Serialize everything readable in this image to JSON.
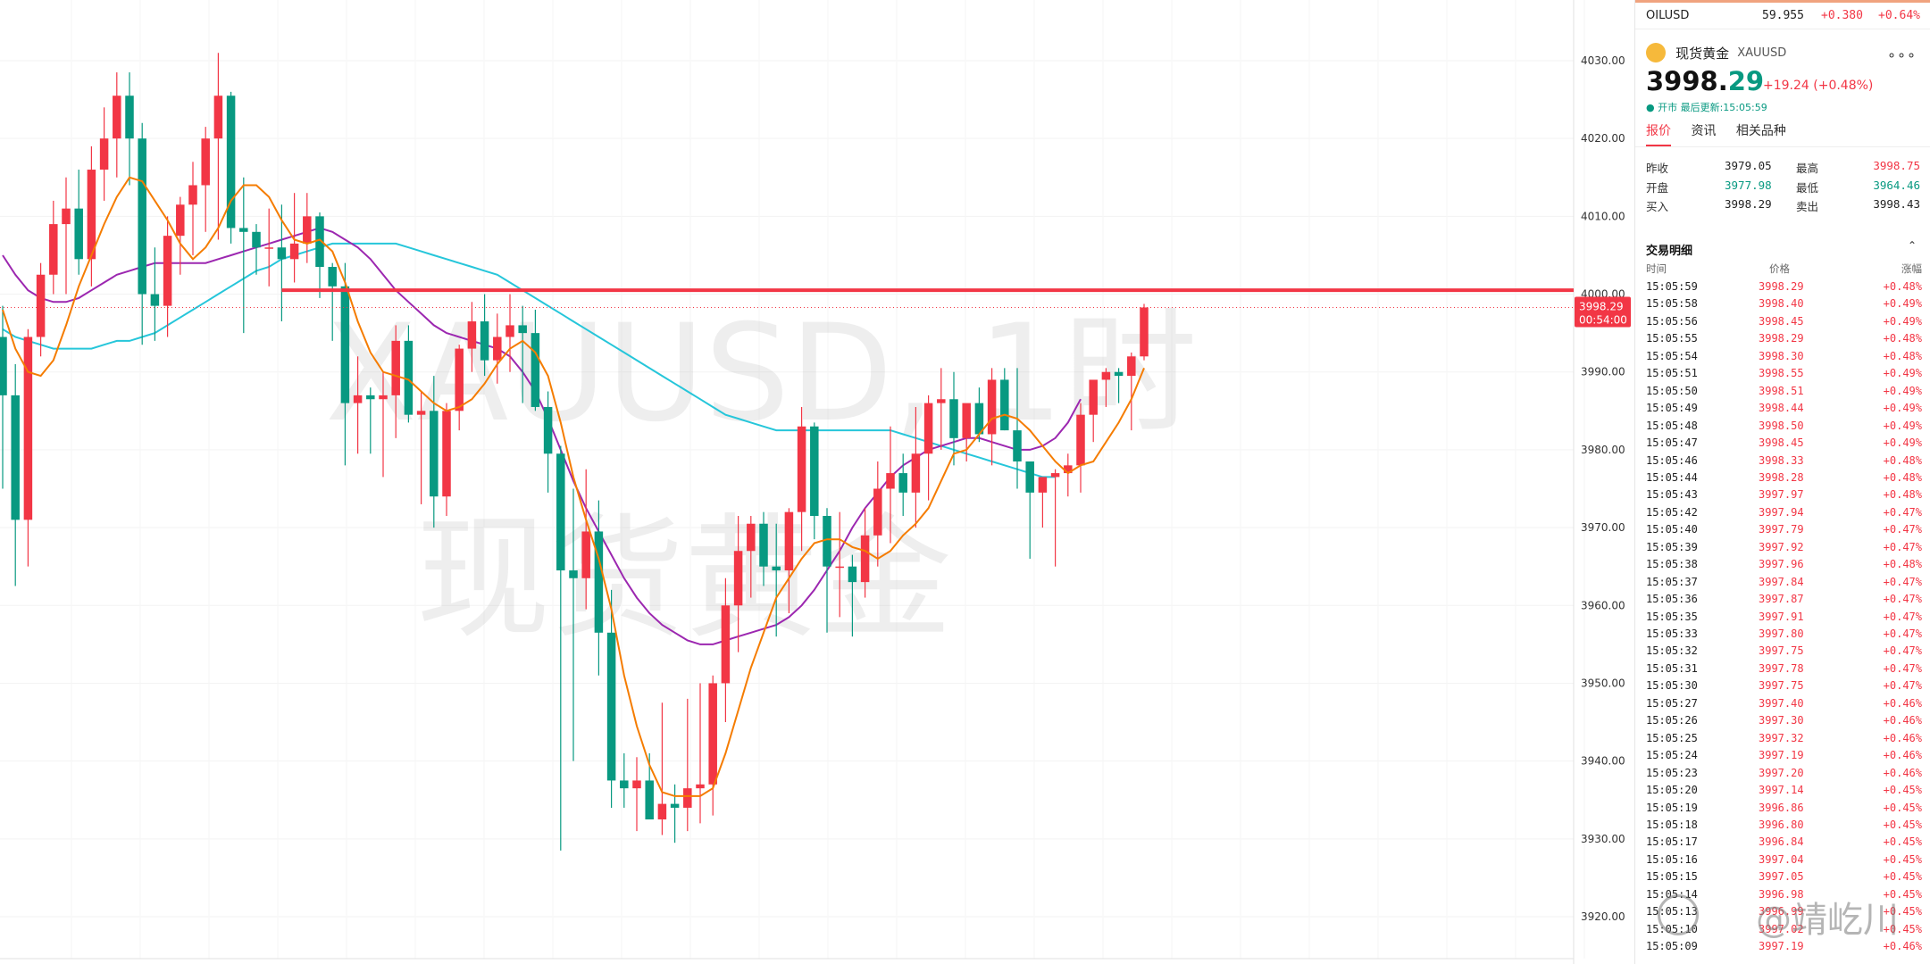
{
  "chart_data": {
    "type": "candlestick",
    "symbol": "XAUUSD",
    "timeframe_label": "XAUUSD, 1时",
    "watermark_cn": "现货黄金",
    "ylim": [
      3916,
      4036
    ],
    "y_ticks": [
      4030,
      4020,
      4010,
      4000,
      3990,
      3980,
      3970,
      3960,
      3950,
      3940,
      3930,
      3920
    ],
    "y_tick_labels": [
      "4030.00",
      "4020.00",
      "4010.00",
      "4000.00",
      "3990.00",
      "3980.00",
      "3970.00",
      "3960.00",
      "3950.00",
      "3940.00",
      "3930.00",
      "3920.00"
    ],
    "last_price_label": "3998.29",
    "countdown_label": "00:54:00",
    "last_price": 3998.29,
    "horizontal_line": 4000.5,
    "horizontal_line_start_bar": 22,
    "colors": {
      "up": "#f23645",
      "down": "#089981",
      "ma_fast": "#f57c00",
      "ma_mid": "#9c27b0",
      "ma_slow": "#26c6da",
      "hline": "#f23645"
    },
    "candles": [
      [
        3994.5,
        3998.5,
        3975.0,
        3987.0
      ],
      [
        3987.0,
        3991.0,
        3962.5,
        3971.0
      ],
      [
        3971.0,
        3995.5,
        3965.0,
        3994.5
      ],
      [
        3994.5,
        4004.0,
        3992.0,
        4002.5
      ],
      [
        4002.5,
        4012.0,
        4000.0,
        4009.0
      ],
      [
        4009.0,
        4015.0,
        4000.0,
        4011.0
      ],
      [
        4011.0,
        4016.0,
        4002.5,
        4004.5
      ],
      [
        4004.5,
        4019.0,
        4001.0,
        4016.0
      ],
      [
        4016.0,
        4024.0,
        4012.0,
        4020.0
      ],
      [
        4020.0,
        4028.5,
        4015.0,
        4025.5
      ],
      [
        4025.5,
        4028.5,
        4014.0,
        4020.0
      ],
      [
        4020.0,
        4022.0,
        3993.5,
        4000.0
      ],
      [
        4000.0,
        4006.0,
        3994.0,
        3998.5
      ],
      [
        3998.5,
        4010.0,
        3994.5,
        4007.5
      ],
      [
        4007.5,
        4012.5,
        4002.5,
        4011.5
      ],
      [
        4011.5,
        4017.0,
        4005.0,
        4014.0
      ],
      [
        4014.0,
        4021.5,
        4008.0,
        4020.0
      ],
      [
        4020.0,
        4031.0,
        4007.0,
        4025.5
      ],
      [
        4025.5,
        4026.0,
        4006.5,
        4008.5
      ],
      [
        4008.5,
        4015.0,
        3995.0,
        4008.0
      ],
      [
        4008.0,
        4009.0,
        4002.5,
        4006.0
      ],
      [
        4006.0,
        4011.0,
        4001.0,
        4006.0
      ],
      [
        4006.0,
        4011.5,
        3996.5,
        4004.5
      ],
      [
        4004.5,
        4013.0,
        4001.5,
        4006.5
      ],
      [
        4006.5,
        4013.0,
        4004.0,
        4010.0
      ],
      [
        4010.0,
        4010.5,
        3999.5,
        4003.5
      ],
      [
        4003.5,
        4004.0,
        3994.0,
        4001.0
      ],
      [
        4001.0,
        4004.0,
        3978.0,
        3986.0
      ],
      [
        3986.0,
        3992.0,
        3979.5,
        3987.0
      ],
      [
        3987.0,
        3988.0,
        3979.5,
        3986.5
      ],
      [
        3986.5,
        3990.0,
        3976.5,
        3987.0
      ],
      [
        3987.0,
        3996.0,
        3981.5,
        3994.0
      ],
      [
        3994.0,
        3996.0,
        3983.5,
        3984.5
      ],
      [
        3984.5,
        3987.5,
        3973.0,
        3985.0
      ],
      [
        3985.0,
        3989.5,
        3970.0,
        3974.0
      ],
      [
        3974.0,
        3986.0,
        3971.5,
        3985.0
      ],
      [
        3985.0,
        3993.5,
        3982.5,
        3993.0
      ],
      [
        3993.0,
        3999.0,
        3990.0,
        3996.5
      ],
      [
        3996.5,
        4000.0,
        3989.5,
        3991.5
      ],
      [
        3991.5,
        3997.5,
        3988.5,
        3994.5
      ],
      [
        3994.5,
        4000.0,
        3990.0,
        3996.0
      ],
      [
        3996.0,
        3998.5,
        3986.0,
        3995.0
      ],
      [
        3995.0,
        3998.0,
        3985.0,
        3985.5
      ],
      [
        3985.5,
        3987.5,
        3974.5,
        3979.5
      ],
      [
        3979.5,
        3980.5,
        3928.5,
        3964.5
      ],
      [
        3964.5,
        3975.0,
        3940.0,
        3963.5
      ],
      [
        3963.5,
        3977.5,
        3959.5,
        3969.5
      ],
      [
        3969.5,
        3973.5,
        3951.0,
        3956.5
      ],
      [
        3956.5,
        3962.0,
        3934.0,
        3937.5
      ],
      [
        3937.5,
        3941.0,
        3934.0,
        3936.5
      ],
      [
        3936.5,
        3940.5,
        3931.0,
        3937.5
      ],
      [
        3937.5,
        3941.0,
        3933.5,
        3932.5
      ],
      [
        3932.5,
        3947.5,
        3930.5,
        3934.5
      ],
      [
        3934.5,
        3937.0,
        3929.5,
        3934.0
      ],
      [
        3934.0,
        3948.0,
        3931.0,
        3936.5
      ],
      [
        3936.5,
        3950.0,
        3932.0,
        3937.0
      ],
      [
        3937.0,
        3951.0,
        3933.0,
        3950.0
      ],
      [
        3950.0,
        3963.5,
        3945.0,
        3960.0
      ],
      [
        3960.0,
        3971.5,
        3954.0,
        3967.0
      ],
      [
        3967.0,
        3971.5,
        3961.0,
        3970.5
      ],
      [
        3970.5,
        3972.0,
        3962.5,
        3965.0
      ],
      [
        3965.0,
        3970.5,
        3956.0,
        3964.5
      ],
      [
        3964.5,
        3972.5,
        3959.0,
        3972.0
      ],
      [
        3972.0,
        3985.5,
        3967.0,
        3983.0
      ],
      [
        3983.0,
        3983.5,
        3968.5,
        3971.5
      ],
      [
        3971.5,
        3972.5,
        3956.5,
        3965.0
      ],
      [
        3965.0,
        3972.0,
        3958.5,
        3965.0
      ],
      [
        3965.0,
        3966.5,
        3956.0,
        3963.0
      ],
      [
        3963.0,
        3972.5,
        3961.0,
        3969.0
      ],
      [
        3969.0,
        3978.5,
        3965.0,
        3975.0
      ],
      [
        3975.0,
        3983.0,
        3968.0,
        3977.0
      ],
      [
        3977.0,
        3979.5,
        3971.5,
        3974.5
      ],
      [
        3974.5,
        3985.5,
        3970.0,
        3979.5
      ],
      [
        3979.5,
        3987.0,
        3973.5,
        3986.0
      ],
      [
        3986.0,
        3990.5,
        3980.0,
        3986.5
      ],
      [
        3986.5,
        3990.0,
        3978.0,
        3981.5
      ],
      [
        3981.5,
        3985.5,
        3978.5,
        3986.0
      ],
      [
        3986.0,
        3988.0,
        3981.0,
        3982.0
      ],
      [
        3982.0,
        3990.5,
        3978.0,
        3989.0
      ],
      [
        3989.0,
        3990.5,
        3982.5,
        3982.5
      ],
      [
        3982.5,
        3990.5,
        3975.0,
        3978.5
      ],
      [
        3978.5,
        3978.5,
        3966.0,
        3974.5
      ],
      [
        3974.5,
        3976.5,
        3970.0,
        3976.5
      ],
      [
        3976.5,
        3977.5,
        3965.0,
        3977.0
      ],
      [
        3977.0,
        3979.5,
        3974.0,
        3978.0
      ],
      [
        3978.0,
        3986.0,
        3974.5,
        3984.5
      ],
      [
        3984.5,
        3988.5,
        3981.0,
        3989.0
      ],
      [
        3989.0,
        3990.5,
        3985.5,
        3990.0
      ],
      [
        3990.0,
        3990.5,
        3986.0,
        3989.5
      ],
      [
        3989.5,
        3992.5,
        3982.5,
        3992.0
      ],
      [
        3992.0,
        3998.75,
        3991.5,
        3998.29
      ]
    ],
    "ma_fast": [
      3998,
      3993,
      3990,
      3989.5,
      3991.5,
      3996,
      4001,
      4005,
      4009,
      4012.5,
      4015,
      4014.5,
      4012,
      4009.5,
      4006.5,
      4004.5,
      4006,
      4008.5,
      4012,
      4014,
      4014,
      4012.5,
      4009.5,
      4007,
      4006.5,
      4007,
      4005.5,
      4001.5,
      3996.5,
      3992.5,
      3990,
      3989.5,
      3989,
      3987.5,
      3986,
      3985,
      3985.5,
      3986.5,
      3988.5,
      3991,
      3993,
      3994,
      3992.5,
      3989.5,
      3983.5,
      3976.5,
      3971,
      3966,
      3959.5,
      3951,
      3944.5,
      3939.5,
      3936,
      3935.5,
      3935.5,
      3935.5,
      3936.5,
      3941,
      3946.5,
      3952,
      3956.5,
      3961,
      3963.5,
      3966,
      3968,
      3968.5,
      3968.5,
      3967.5,
      3967,
      3966,
      3967,
      3969,
      3970.5,
      3972.5,
      3976,
      3979.5,
      3980,
      3982,
      3984,
      3984.5,
      3984,
      3982.5,
      3980.5,
      3978.5,
      3977,
      3978,
      3978.5,
      3981,
      3983.5,
      3986.5,
      3990.5
    ],
    "ma_mid": [
      4005,
      4002.5,
      4000.5,
      3999.5,
      3999,
      3999,
      3999.5,
      4000.5,
      4001.5,
      4002.5,
      4003,
      4003.5,
      4004,
      4004,
      4004,
      4004,
      4004,
      4004.5,
      4005,
      4005.5,
      4006,
      4006.5,
      4007,
      4007.5,
      4008,
      4008.5,
      4008,
      4007,
      4006,
      4004.5,
      4002.5,
      4000.5,
      3999,
      3997.5,
      3996,
      3995,
      3994.5,
      3994,
      3993.5,
      3993,
      3992,
      3990,
      3987.5,
      3984,
      3980,
      3976,
      3972.5,
      3969.5,
      3966.5,
      3963.5,
      3961,
      3959,
      3957.5,
      3956.5,
      3955.5,
      3955,
      3955,
      3955.5,
      3956,
      3956.5,
      3957,
      3957.5,
      3958.5,
      3960,
      3962,
      3964.5,
      3967,
      3970,
      3972.5,
      3974.5,
      3976.5,
      3978,
      3979,
      3980,
      3980.5,
      3981,
      3981.5,
      3981.5,
      3981,
      3980.5,
      3980,
      3980,
      3980.5,
      3981.5,
      3983.5,
      3986.5
    ],
    "ma_slow": [
      3995.5,
      3994.5,
      3994,
      3993.5,
      3993,
      3993,
      3993,
      3993,
      3993.5,
      3994,
      3994,
      3994.5,
      3995,
      3996,
      3997,
      3998,
      3999,
      4000,
      4001,
      4002,
      4003,
      4003.5,
      4004.5,
      4005,
      4005.5,
      4006,
      4006.5,
      4006.5,
      4006.5,
      4006.5,
      4006.5,
      4006.5,
      4006,
      4005.5,
      4005,
      4004.5,
      4004,
      4003.5,
      4003,
      4002.5,
      4001.5,
      4000.5,
      3999.5,
      3998.5,
      3997.5,
      3996.5,
      3995.5,
      3994.5,
      3993.5,
      3992.5,
      3991.5,
      3990.5,
      3989.5,
      3988.5,
      3987.5,
      3986.5,
      3985.5,
      3984.5,
      3984,
      3983.5,
      3983,
      3982.5,
      3982.5,
      3982.5,
      3982.5,
      3982.5,
      3982.5,
      3982.5,
      3982.5,
      3982.5,
      3982.5,
      3982,
      3981.5,
      3981,
      3980.5,
      3980,
      3979.5,
      3979,
      3978.5,
      3978,
      3977.5,
      3977,
      3976.5,
      3976.5
    ]
  },
  "side_panel": {
    "oil": {
      "symbol": "OILUSD",
      "price": "59.955",
      "change": "+0.380",
      "pct": "+0.64%"
    },
    "header": {
      "name": "现货黄金",
      "symbol": "XAUUSD",
      "more": "∘∘∘"
    },
    "price_main": "3998.",
    "price_dec": "29",
    "change_line": "+19.24 (+0.48%)",
    "status": "● 开市 最后更新:15:05:59",
    "tabs": [
      "报价",
      "资讯",
      "相关品种"
    ],
    "quote": {
      "prev_close_label": "昨收",
      "prev_close": "3979.05",
      "high_label": "最高",
      "high": "3998.75",
      "open_label": "开盘",
      "open": "3977.98",
      "low_label": "最低",
      "low": "3964.46",
      "bid_label": "买入",
      "bid": "3998.29",
      "ask_label": "卖出",
      "ask": "3998.43"
    },
    "trades_title": "交易明细",
    "trades_headers": [
      "时间",
      "价格",
      "涨幅"
    ],
    "trades": [
      [
        "15:05:59",
        "3998.29",
        "+0.48%"
      ],
      [
        "15:05:58",
        "3998.40",
        "+0.49%"
      ],
      [
        "15:05:56",
        "3998.45",
        "+0.49%"
      ],
      [
        "15:05:55",
        "3998.29",
        "+0.48%"
      ],
      [
        "15:05:54",
        "3998.30",
        "+0.48%"
      ],
      [
        "15:05:51",
        "3998.55",
        "+0.49%"
      ],
      [
        "15:05:50",
        "3998.51",
        "+0.49%"
      ],
      [
        "15:05:49",
        "3998.44",
        "+0.49%"
      ],
      [
        "15:05:48",
        "3998.50",
        "+0.49%"
      ],
      [
        "15:05:47",
        "3998.45",
        "+0.49%"
      ],
      [
        "15:05:46",
        "3998.33",
        "+0.48%"
      ],
      [
        "15:05:44",
        "3998.28",
        "+0.48%"
      ],
      [
        "15:05:43",
        "3997.97",
        "+0.48%"
      ],
      [
        "15:05:42",
        "3997.94",
        "+0.47%"
      ],
      [
        "15:05:40",
        "3997.79",
        "+0.47%"
      ],
      [
        "15:05:39",
        "3997.92",
        "+0.47%"
      ],
      [
        "15:05:38",
        "3997.96",
        "+0.48%"
      ],
      [
        "15:05:37",
        "3997.84",
        "+0.47%"
      ],
      [
        "15:05:36",
        "3997.87",
        "+0.47%"
      ],
      [
        "15:05:35",
        "3997.91",
        "+0.47%"
      ],
      [
        "15:05:33",
        "3997.80",
        "+0.47%"
      ],
      [
        "15:05:32",
        "3997.75",
        "+0.47%"
      ],
      [
        "15:05:31",
        "3997.78",
        "+0.47%"
      ],
      [
        "15:05:30",
        "3997.75",
        "+0.47%"
      ],
      [
        "15:05:27",
        "3997.40",
        "+0.46%"
      ],
      [
        "15:05:26",
        "3997.30",
        "+0.46%"
      ],
      [
        "15:05:25",
        "3997.32",
        "+0.46%"
      ],
      [
        "15:05:24",
        "3997.19",
        "+0.46%"
      ],
      [
        "15:05:23",
        "3997.20",
        "+0.46%"
      ],
      [
        "15:05:20",
        "3997.14",
        "+0.45%"
      ],
      [
        "15:05:19",
        "3996.86",
        "+0.45%"
      ],
      [
        "15:05:18",
        "3996.80",
        "+0.45%"
      ],
      [
        "15:05:17",
        "3996.84",
        "+0.45%"
      ],
      [
        "15:05:16",
        "3997.04",
        "+0.45%"
      ],
      [
        "15:05:15",
        "3997.05",
        "+0.45%"
      ],
      [
        "15:05:14",
        "3996.98",
        "+0.45%"
      ],
      [
        "15:05:13",
        "3996.99",
        "+0.45%"
      ],
      [
        "15:05:10",
        "3997.02",
        "+0.45%"
      ],
      [
        "15:05:09",
        "3997.19",
        "+0.46%"
      ]
    ],
    "watermark": "@靖屹川"
  }
}
